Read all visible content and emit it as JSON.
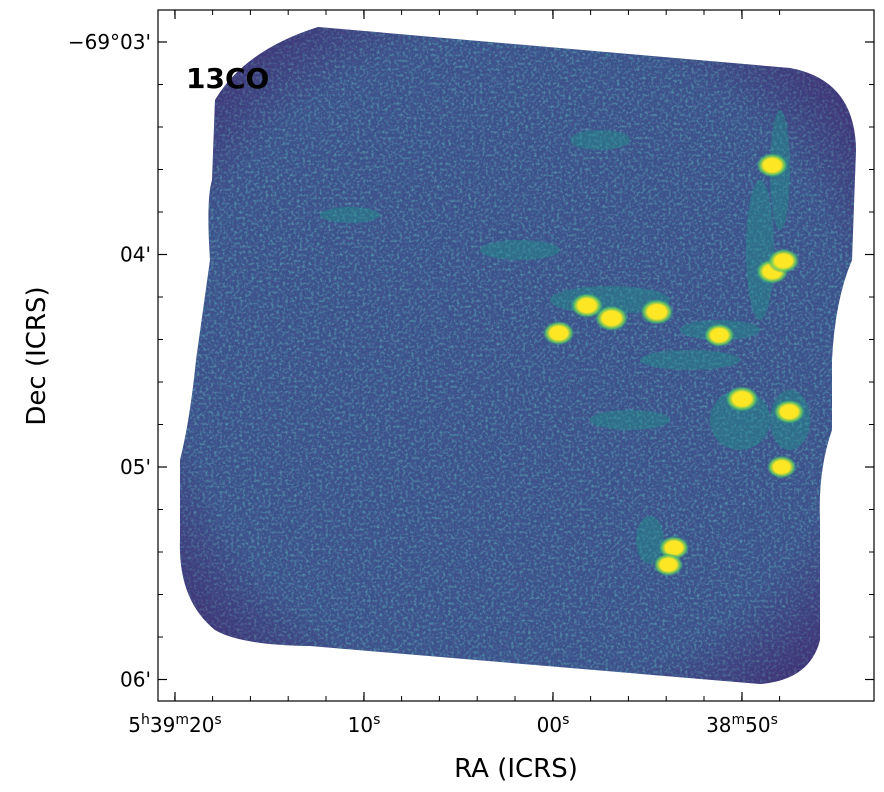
{
  "chart_data": {
    "type": "heatmap",
    "annotation": "13CO",
    "xlabel": "RA (ICRS)",
    "ylabel": "Dec (ICRS)",
    "colormap": "viridis",
    "colormap_colors": [
      "#440154",
      "#3b528b",
      "#21918c",
      "#5ec962",
      "#fde725"
    ],
    "background_color": "#3b528b",
    "x_ticks": [
      {
        "h": "5",
        "m": "39",
        "s": "20"
      },
      {
        "h": "",
        "m": "",
        "s": "10"
      },
      {
        "h": "",
        "m": "",
        "s": "00"
      },
      {
        "h": "",
        "m": "38",
        "s": "50"
      }
    ],
    "y_ticks": [
      {
        "label": "−69°03'",
        "dec_arcmin": 3
      },
      {
        "label": "04'",
        "dec_arcmin": 4
      },
      {
        "label": "05'",
        "dec_arcmin": 5
      },
      {
        "label": "06'",
        "dec_arcmin": 6
      }
    ],
    "bright_clumps": [
      {
        "ra_s": 54.5,
        "dec_arcmin": 4.27,
        "level": 1.0
      },
      {
        "ra_s": 56.9,
        "dec_arcmin": 4.3,
        "level": 1.0
      },
      {
        "ra_s": 58.2,
        "dec_arcmin": 4.24,
        "level": 0.95
      },
      {
        "ra_s": 59.7,
        "dec_arcmin": 4.37,
        "level": 0.9
      },
      {
        "ra_s": 50.0,
        "dec_arcmin": 4.68,
        "level": 1.0
      },
      {
        "ra_s": 48.4,
        "dec_arcmin": 4.08,
        "level": 0.95
      },
      {
        "ra_s": 47.8,
        "dec_arcmin": 4.03,
        "level": 0.9
      },
      {
        "ra_s": 48.4,
        "dec_arcmin": 3.58,
        "level": 0.9
      },
      {
        "ra_s": 51.2,
        "dec_arcmin": 4.38,
        "level": 0.85
      },
      {
        "ra_s": 47.5,
        "dec_arcmin": 4.74,
        "level": 0.9
      },
      {
        "ra_s": 47.9,
        "dec_arcmin": 5.0,
        "level": 0.8
      },
      {
        "ra_s": 53.6,
        "dec_arcmin": 5.38,
        "level": 0.85
      },
      {
        "ra_s": 53.9,
        "dec_arcmin": 5.46,
        "level": 0.8
      }
    ]
  }
}
